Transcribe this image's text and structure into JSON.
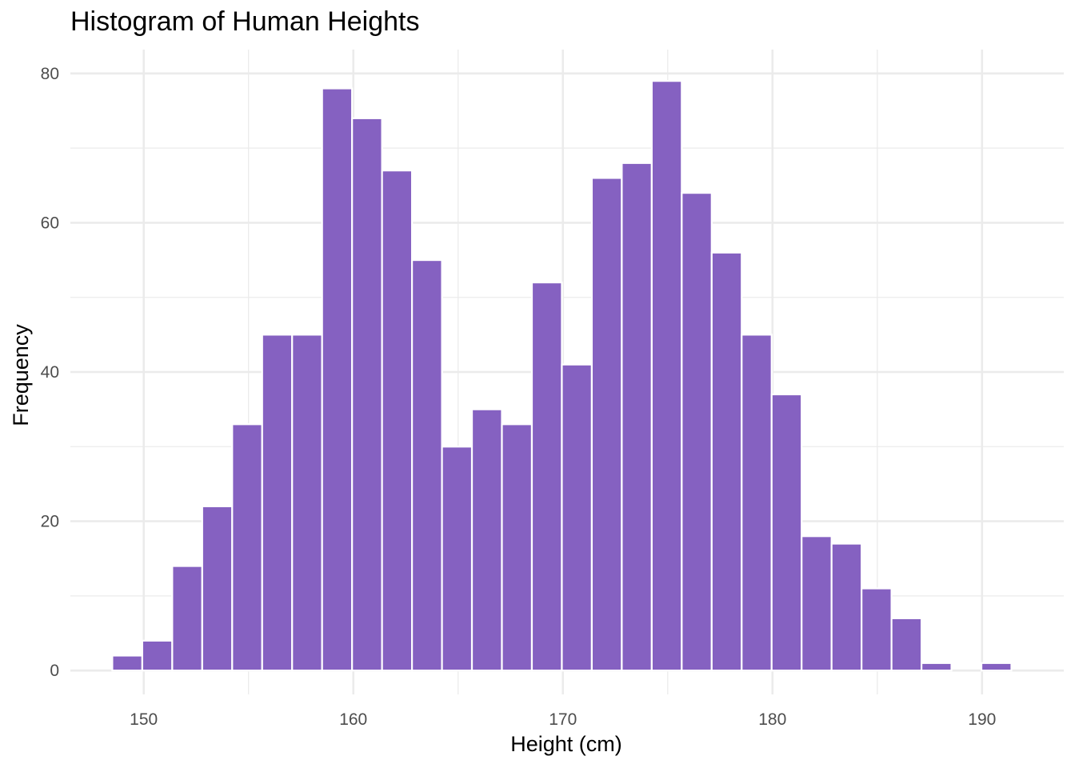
{
  "chart_data": {
    "type": "bar",
    "title": "Histogram of Human Heights",
    "xlabel": "Height (cm)",
    "ylabel": "Frequency",
    "xlim": [
      146.5,
      193.9
    ],
    "ylim": [
      -3.2,
      83.2
    ],
    "x_ticks": [
      150,
      160,
      170,
      180,
      190
    ],
    "x_minor_ticks": [
      145,
      155,
      165,
      175,
      185,
      195
    ],
    "y_ticks": [
      0,
      20,
      40,
      60,
      80
    ],
    "y_minor_ticks": [
      10,
      30,
      50,
      70
    ],
    "grid": true,
    "bar_color": "#8561c1",
    "bin_width": 1.43,
    "bins_start": 148.5,
    "values": [
      2,
      4,
      14,
      22,
      33,
      45,
      45,
      78,
      74,
      67,
      55,
      30,
      35,
      33,
      52,
      41,
      66,
      68,
      79,
      64,
      56,
      45,
      37,
      18,
      17,
      11,
      7,
      1,
      0,
      1
    ]
  }
}
